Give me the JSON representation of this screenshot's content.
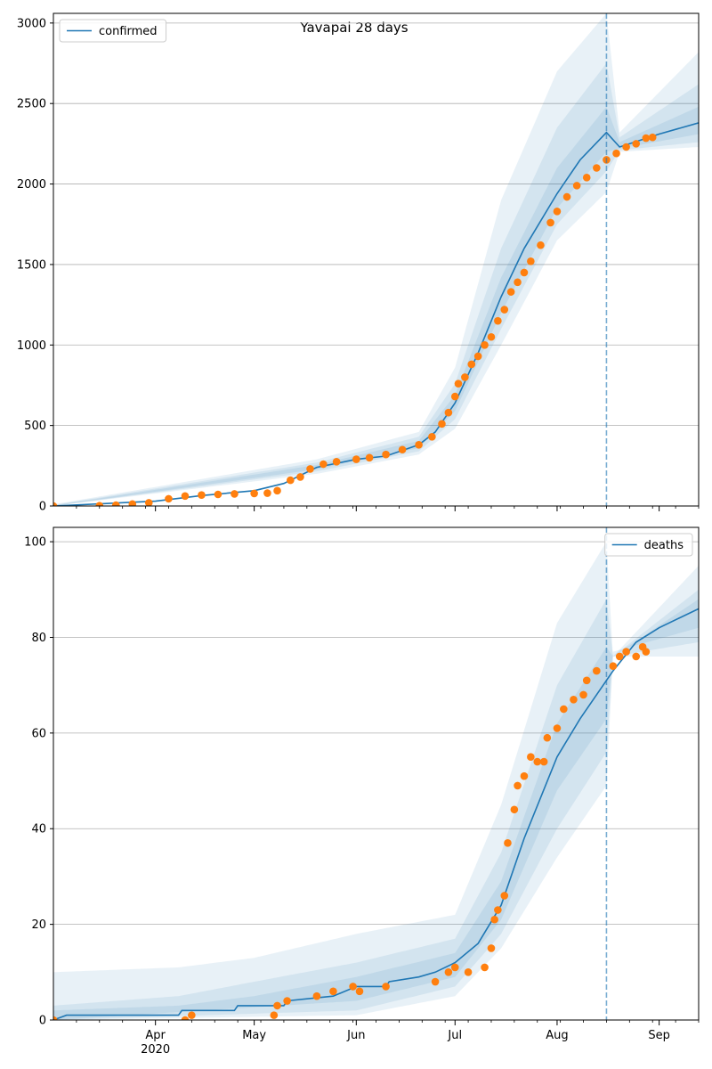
{
  "figure": {
    "title": "Yavapai 28 days"
  },
  "colors": {
    "model": "#1f77b4",
    "observed": "#ff7f0e",
    "band": "#1f77b4",
    "grid": "#b0b0b0",
    "vline": "#1f77b4"
  },
  "x_axis": {
    "start_date": "2020-03-01",
    "end_date": "2020-09-13",
    "major_ticks": [
      {
        "date": "2020-04-01",
        "label": "Apr",
        "sublabel": "2020"
      },
      {
        "date": "2020-05-01",
        "label": "May",
        "sublabel": ""
      },
      {
        "date": "2020-06-01",
        "label": "Jun",
        "sublabel": ""
      },
      {
        "date": "2020-07-01",
        "label": "Jul",
        "sublabel": ""
      },
      {
        "date": "2020-08-01",
        "label": "Aug",
        "sublabel": ""
      },
      {
        "date": "2020-09-01",
        "label": "Sep",
        "sublabel": ""
      }
    ],
    "forecast_start": "2020-08-16"
  },
  "chart_data": [
    {
      "type": "line",
      "name": "confirmed",
      "legend": "top-left",
      "ylim": [
        0,
        3060
      ],
      "yticks": [
        0,
        500,
        1000,
        1500,
        2000,
        2500,
        3000
      ],
      "grid": "y",
      "model": [
        [
          "2020-03-01",
          0
        ],
        [
          "2020-04-01",
          30
        ],
        [
          "2020-04-15",
          65
        ],
        [
          "2020-05-01",
          95
        ],
        [
          "2020-05-10",
          140
        ],
        [
          "2020-05-20",
          240
        ],
        [
          "2020-06-01",
          290
        ],
        [
          "2020-06-10",
          310
        ],
        [
          "2020-06-20",
          380
        ],
        [
          "2020-06-25",
          460
        ],
        [
          "2020-07-01",
          640
        ],
        [
          "2020-07-08",
          950
        ],
        [
          "2020-07-15",
          1300
        ],
        [
          "2020-07-22",
          1600
        ],
        [
          "2020-08-01",
          1940
        ],
        [
          "2020-08-08",
          2150
        ],
        [
          "2020-08-16",
          2320
        ],
        [
          "2020-08-20",
          2230
        ],
        [
          "2020-09-01",
          2310
        ],
        [
          "2020-09-13",
          2380
        ]
      ],
      "bands": [
        {
          "lower": [
            [
              "2020-03-01",
              0
            ],
            [
              "2020-05-20",
              200
            ],
            [
              "2020-06-20",
              320
            ],
            [
              "2020-07-01",
              480
            ],
            [
              "2020-07-15",
              1000
            ],
            [
              "2020-08-01",
              1650
            ],
            [
              "2020-08-16",
              1950
            ],
            [
              "2020-08-20",
              2200
            ],
            [
              "2020-09-13",
              2230
            ]
          ],
          "upper": [
            [
              "2020-03-01",
              10
            ],
            [
              "2020-05-20",
              290
            ],
            [
              "2020-06-20",
              460
            ],
            [
              "2020-07-01",
              860
            ],
            [
              "2020-07-15",
              1900
            ],
            [
              "2020-08-01",
              2700
            ],
            [
              "2020-08-16",
              3060
            ],
            [
              "2020-08-20",
              2320
            ],
            [
              "2020-09-13",
              2820
            ]
          ]
        },
        {
          "lower": [
            [
              "2020-03-01",
              0
            ],
            [
              "2020-05-20",
              215
            ],
            [
              "2020-06-20",
              340
            ],
            [
              "2020-07-01",
              540
            ],
            [
              "2020-07-15",
              1100
            ],
            [
              "2020-08-01",
              1750
            ],
            [
              "2020-08-16",
              2080
            ],
            [
              "2020-08-20",
              2210
            ],
            [
              "2020-09-13",
              2260
            ]
          ],
          "upper": [
            [
              "2020-03-01",
              6
            ],
            [
              "2020-05-20",
              270
            ],
            [
              "2020-06-20",
              430
            ],
            [
              "2020-07-01",
              760
            ],
            [
              "2020-07-15",
              1600
            ],
            [
              "2020-08-01",
              2350
            ],
            [
              "2020-08-16",
              2750
            ],
            [
              "2020-08-20",
              2290
            ],
            [
              "2020-09-13",
              2620
            ]
          ]
        },
        {
          "lower": [
            [
              "2020-03-01",
              0
            ],
            [
              "2020-05-20",
              228
            ],
            [
              "2020-06-20",
              360
            ],
            [
              "2020-07-01",
              590
            ],
            [
              "2020-07-15",
              1200
            ],
            [
              "2020-08-01",
              1850
            ],
            [
              "2020-08-16",
              2200
            ],
            [
              "2020-08-20",
              2220
            ],
            [
              "2020-09-13",
              2310
            ]
          ],
          "upper": [
            [
              "2020-03-01",
              3
            ],
            [
              "2020-05-20",
              255
            ],
            [
              "2020-06-20",
              405
            ],
            [
              "2020-07-01",
              690
            ],
            [
              "2020-07-15",
              1420
            ],
            [
              "2020-08-01",
              2100
            ],
            [
              "2020-08-16",
              2480
            ],
            [
              "2020-08-20",
              2260
            ],
            [
              "2020-09-13",
              2480
            ]
          ]
        }
      ],
      "observed": [
        [
          "2020-03-01",
          0
        ],
        [
          "2020-03-15",
          2
        ],
        [
          "2020-03-20",
          5
        ],
        [
          "2020-03-25",
          12
        ],
        [
          "2020-03-30",
          20
        ],
        [
          "2020-04-05",
          45
        ],
        [
          "2020-04-10",
          62
        ],
        [
          "2020-04-15",
          68
        ],
        [
          "2020-04-20",
          72
        ],
        [
          "2020-04-25",
          75
        ],
        [
          "2020-05-01",
          78
        ],
        [
          "2020-05-05",
          80
        ],
        [
          "2020-05-08",
          95
        ],
        [
          "2020-05-12",
          160
        ],
        [
          "2020-05-15",
          180
        ],
        [
          "2020-05-18",
          230
        ],
        [
          "2020-05-22",
          260
        ],
        [
          "2020-05-26",
          275
        ],
        [
          "2020-06-01",
          290
        ],
        [
          "2020-06-05",
          300
        ],
        [
          "2020-06-10",
          320
        ],
        [
          "2020-06-15",
          350
        ],
        [
          "2020-06-20",
          380
        ],
        [
          "2020-06-24",
          430
        ],
        [
          "2020-06-27",
          510
        ],
        [
          "2020-06-29",
          580
        ],
        [
          "2020-07-01",
          680
        ],
        [
          "2020-07-02",
          760
        ],
        [
          "2020-07-04",
          800
        ],
        [
          "2020-07-06",
          880
        ],
        [
          "2020-07-08",
          930
        ],
        [
          "2020-07-10",
          1000
        ],
        [
          "2020-07-12",
          1050
        ],
        [
          "2020-07-14",
          1150
        ],
        [
          "2020-07-16",
          1220
        ],
        [
          "2020-07-18",
          1330
        ],
        [
          "2020-07-20",
          1390
        ],
        [
          "2020-07-22",
          1450
        ],
        [
          "2020-07-24",
          1520
        ],
        [
          "2020-07-27",
          1620
        ],
        [
          "2020-07-30",
          1760
        ],
        [
          "2020-08-01",
          1830
        ],
        [
          "2020-08-04",
          1920
        ],
        [
          "2020-08-07",
          1990
        ],
        [
          "2020-08-10",
          2040
        ],
        [
          "2020-08-13",
          2100
        ],
        [
          "2020-08-16",
          2150
        ],
        [
          "2020-08-19",
          2190
        ],
        [
          "2020-08-22",
          2230
        ],
        [
          "2020-08-25",
          2250
        ],
        [
          "2020-08-28",
          2285
        ],
        [
          "2020-08-30",
          2290
        ]
      ]
    },
    {
      "type": "line",
      "name": "deaths",
      "legend": "top-right",
      "ylim": [
        0,
        103
      ],
      "yticks": [
        0,
        20,
        40,
        60,
        80,
        100
      ],
      "grid": "y",
      "model": [
        [
          "2020-03-01",
          0
        ],
        [
          "2020-03-05",
          1
        ],
        [
          "2020-04-08",
          1
        ],
        [
          "2020-04-09",
          2
        ],
        [
          "2020-04-25",
          2
        ],
        [
          "2020-04-26",
          3
        ],
        [
          "2020-05-10",
          3
        ],
        [
          "2020-05-11",
          4
        ],
        [
          "2020-05-25",
          5
        ],
        [
          "2020-06-01",
          7
        ],
        [
          "2020-06-10",
          7
        ],
        [
          "2020-06-11",
          8
        ],
        [
          "2020-06-20",
          9
        ],
        [
          "2020-06-25",
          10
        ],
        [
          "2020-07-01",
          12
        ],
        [
          "2020-07-08",
          16
        ],
        [
          "2020-07-15",
          24
        ],
        [
          "2020-07-22",
          38
        ],
        [
          "2020-08-01",
          55
        ],
        [
          "2020-08-08",
          63
        ],
        [
          "2020-08-16",
          71
        ],
        [
          "2020-08-18",
          73
        ],
        [
          "2020-08-25",
          79
        ],
        [
          "2020-09-01",
          82
        ],
        [
          "2020-09-07",
          84
        ],
        [
          "2020-09-13",
          86
        ]
      ],
      "bands": [
        {
          "lower": [
            [
              "2020-03-01",
              0
            ],
            [
              "2020-06-01",
              1
            ],
            [
              "2020-07-01",
              5
            ],
            [
              "2020-07-15",
              15
            ],
            [
              "2020-08-01",
              34
            ],
            [
              "2020-08-16",
              49
            ],
            [
              "2020-08-18",
              76
            ],
            [
              "2020-09-13",
              76
            ]
          ],
          "upper": [
            [
              "2020-03-01",
              10
            ],
            [
              "2020-04-08",
              11
            ],
            [
              "2020-05-01",
              13
            ],
            [
              "2020-06-01",
              18
            ],
            [
              "2020-07-01",
              22
            ],
            [
              "2020-07-15",
              45
            ],
            [
              "2020-08-01",
              83
            ],
            [
              "2020-08-16",
              100
            ],
            [
              "2020-08-18",
              76
            ],
            [
              "2020-09-13",
              95
            ]
          ]
        },
        {
          "lower": [
            [
              "2020-03-01",
              0
            ],
            [
              "2020-06-01",
              2
            ],
            [
              "2020-07-01",
              7
            ],
            [
              "2020-07-15",
              18
            ],
            [
              "2020-08-01",
              40
            ],
            [
              "2020-08-16",
              56
            ],
            [
              "2020-08-18",
              76
            ],
            [
              "2020-09-13",
              79
            ]
          ],
          "upper": [
            [
              "2020-03-01",
              3
            ],
            [
              "2020-04-08",
              5
            ],
            [
              "2020-05-01",
              8
            ],
            [
              "2020-06-01",
              12
            ],
            [
              "2020-07-01",
              17
            ],
            [
              "2020-07-15",
              35
            ],
            [
              "2020-08-01",
              70
            ],
            [
              "2020-08-16",
              88
            ],
            [
              "2020-08-18",
              76
            ],
            [
              "2020-09-13",
              90
            ]
          ]
        },
        {
          "lower": [
            [
              "2020-03-01",
              0
            ],
            [
              "2020-06-01",
              4
            ],
            [
              "2020-07-01",
              9
            ],
            [
              "2020-07-15",
              21
            ],
            [
              "2020-08-01",
              48
            ],
            [
              "2020-08-16",
              63
            ],
            [
              "2020-08-18",
              77
            ],
            [
              "2020-09-13",
              82
            ]
          ],
          "upper": [
            [
              "2020-03-01",
              2
            ],
            [
              "2020-04-08",
              3
            ],
            [
              "2020-05-01",
              5
            ],
            [
              "2020-06-01",
              9
            ],
            [
              "2020-07-01",
              14
            ],
            [
              "2020-07-15",
              29
            ],
            [
              "2020-08-01",
              62
            ],
            [
              "2020-08-16",
              78
            ],
            [
              "2020-08-18",
              76
            ],
            [
              "2020-09-13",
              88
            ]
          ]
        }
      ],
      "observed": [
        [
          "2020-03-01",
          0
        ],
        [
          "2020-04-10",
          0
        ],
        [
          "2020-04-12",
          1
        ],
        [
          "2020-05-07",
          1
        ],
        [
          "2020-05-08",
          3
        ],
        [
          "2020-05-11",
          4
        ],
        [
          "2020-05-20",
          5
        ],
        [
          "2020-05-25",
          6
        ],
        [
          "2020-05-31",
          7
        ],
        [
          "2020-06-02",
          6
        ],
        [
          "2020-06-10",
          7
        ],
        [
          "2020-06-25",
          8
        ],
        [
          "2020-06-29",
          10
        ],
        [
          "2020-07-01",
          11
        ],
        [
          "2020-07-05",
          10
        ],
        [
          "2020-07-10",
          11
        ],
        [
          "2020-07-12",
          15
        ],
        [
          "2020-07-13",
          21
        ],
        [
          "2020-07-14",
          23
        ],
        [
          "2020-07-16",
          26
        ],
        [
          "2020-07-17",
          37
        ],
        [
          "2020-07-19",
          44
        ],
        [
          "2020-07-20",
          49
        ],
        [
          "2020-07-22",
          51
        ],
        [
          "2020-07-24",
          55
        ],
        [
          "2020-07-26",
          54
        ],
        [
          "2020-07-28",
          54
        ],
        [
          "2020-07-29",
          59
        ],
        [
          "2020-08-01",
          61
        ],
        [
          "2020-08-03",
          65
        ],
        [
          "2020-08-06",
          67
        ],
        [
          "2020-08-09",
          68
        ],
        [
          "2020-08-10",
          71
        ],
        [
          "2020-08-13",
          73
        ],
        [
          "2020-08-18",
          74
        ],
        [
          "2020-08-20",
          76
        ],
        [
          "2020-08-22",
          77
        ],
        [
          "2020-08-25",
          76
        ],
        [
          "2020-08-27",
          78
        ],
        [
          "2020-08-28",
          77
        ]
      ]
    }
  ]
}
